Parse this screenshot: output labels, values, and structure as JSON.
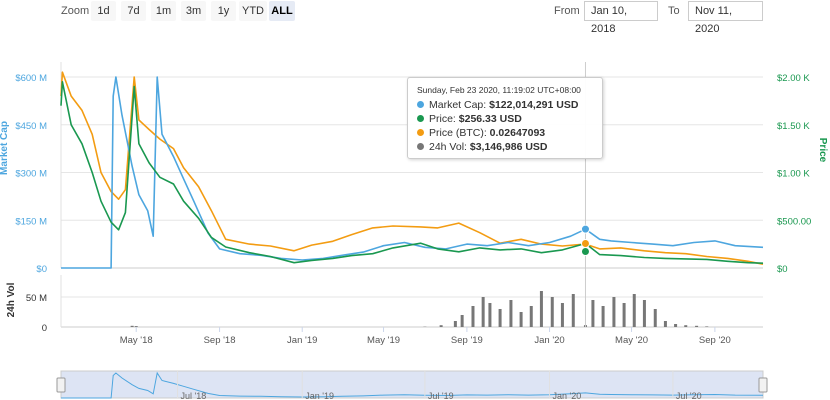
{
  "toolbar": {
    "zoom_label": "Zoom",
    "zoom_buttons": [
      "1d",
      "7d",
      "1m",
      "3m",
      "1y",
      "YTD",
      "ALL"
    ],
    "active_zoom": "ALL",
    "from_label": "From",
    "from_value": "Jan 10, 2018",
    "to_label": "To",
    "to_value": "Nov 11, 2020"
  },
  "tooltip": {
    "date": "Sunday, Feb 23 2020, 11:19:02 UTC+08:00",
    "rows": [
      {
        "label": "Market Cap:",
        "value": "$122,014,291 USD",
        "color": "#4da6df"
      },
      {
        "label": "Price:",
        "value": "$256.33 USD",
        "color": "#1a9850"
      },
      {
        "label": "Price (BTC):",
        "value": "0.02647093",
        "color": "#f39c12"
      },
      {
        "label": "24h Vol:",
        "value": "$3,146,986 USD",
        "color": "#777777"
      }
    ]
  },
  "colors": {
    "market_cap": "#4da6df",
    "price": "#1a9850",
    "price_btc": "#f39c12",
    "volume": "#777777",
    "navigator_fill": "#dde4f4"
  },
  "chart_data": {
    "type": "line",
    "x_ticks": [
      "May '18",
      "Sep '18",
      "Jan '19",
      "May '19",
      "Sep '19",
      "Jan '20",
      "May '20",
      "Sep '20"
    ],
    "navigator_ticks": [
      "Jul '18",
      "Jan '19",
      "Jul '19",
      "Jan '20",
      "Jul '20"
    ],
    "y_left": {
      "label": "Market Cap",
      "ticks": [
        "$0",
        "$150 M",
        "$300 M",
        "$450 M",
        "$600 M"
      ],
      "range": [
        0,
        600000000
      ]
    },
    "y_right": {
      "label": "Price",
      "ticks": [
        "$0",
        "$500.00",
        "$1.00 K",
        "$1.50 K",
        "$2.00 K"
      ],
      "range": [
        0,
        2000
      ]
    },
    "volume_axis": {
      "label": "24h Vol",
      "ticks": [
        "0",
        "50 M"
      ],
      "range": [
        0,
        75000000
      ]
    },
    "series": [
      {
        "name": "Market Cap",
        "axis": "left",
        "unit": "USD",
        "points": [
          [
            "2018-01-10",
            0
          ],
          [
            "2018-03-25",
            0
          ],
          [
            "2018-03-28",
            540000000
          ],
          [
            "2018-04-01",
            600000000
          ],
          [
            "2018-04-10",
            480000000
          ],
          [
            "2018-04-25",
            320000000
          ],
          [
            "2018-05-05",
            230000000
          ],
          [
            "2018-05-18",
            180000000
          ],
          [
            "2018-05-26",
            100000000
          ],
          [
            "2018-06-01",
            600000000
          ],
          [
            "2018-06-08",
            420000000
          ],
          [
            "2018-06-25",
            350000000
          ],
          [
            "2018-07-10",
            280000000
          ],
          [
            "2018-07-25",
            210000000
          ],
          [
            "2018-08-15",
            110000000
          ],
          [
            "2018-09-01",
            60000000
          ],
          [
            "2018-10-01",
            45000000
          ],
          [
            "2018-11-01",
            40000000
          ],
          [
            "2018-12-01",
            30000000
          ],
          [
            "2019-01-01",
            25000000
          ],
          [
            "2019-02-01",
            30000000
          ],
          [
            "2019-03-01",
            40000000
          ],
          [
            "2019-04-01",
            50000000
          ],
          [
            "2019-05-01",
            70000000
          ],
          [
            "2019-06-01",
            80000000
          ],
          [
            "2019-07-01",
            65000000
          ],
          [
            "2019-08-01",
            60000000
          ],
          [
            "2019-09-01",
            75000000
          ],
          [
            "2019-10-01",
            70000000
          ],
          [
            "2019-11-01",
            80000000
          ],
          [
            "2019-12-01",
            70000000
          ],
          [
            "2020-01-01",
            80000000
          ],
          [
            "2020-02-01",
            100000000
          ],
          [
            "2020-02-23",
            122014291
          ],
          [
            "2020-03-15",
            90000000
          ],
          [
            "2020-04-01",
            85000000
          ],
          [
            "2020-05-01",
            80000000
          ],
          [
            "2020-06-01",
            75000000
          ],
          [
            "2020-07-01",
            70000000
          ],
          [
            "2020-08-01",
            80000000
          ],
          [
            "2020-09-01",
            85000000
          ],
          [
            "2020-10-01",
            70000000
          ],
          [
            "2020-11-11",
            65000000
          ]
        ]
      },
      {
        "name": "Price",
        "axis": "right",
        "unit": "USD",
        "points": [
          [
            "2018-01-10",
            1700
          ],
          [
            "2018-01-12",
            1950
          ],
          [
            "2018-01-25",
            1500
          ],
          [
            "2018-02-10",
            1300
          ],
          [
            "2018-02-25",
            1000
          ],
          [
            "2018-03-10",
            700
          ],
          [
            "2018-03-25",
            480
          ],
          [
            "2018-04-05",
            400
          ],
          [
            "2018-04-15",
            580
          ],
          [
            "2018-04-28",
            1900
          ],
          [
            "2018-05-05",
            1300
          ],
          [
            "2018-05-20",
            1100
          ],
          [
            "2018-06-05",
            950
          ],
          [
            "2018-06-25",
            880
          ],
          [
            "2018-07-10",
            700
          ],
          [
            "2018-08-01",
            520
          ],
          [
            "2018-08-20",
            320
          ],
          [
            "2018-09-10",
            220
          ],
          [
            "2018-10-15",
            160
          ],
          [
            "2018-11-15",
            120
          ],
          [
            "2018-12-20",
            55
          ],
          [
            "2019-01-15",
            80
          ],
          [
            "2019-02-15",
            100
          ],
          [
            "2019-03-15",
            130
          ],
          [
            "2019-04-15",
            150
          ],
          [
            "2019-05-15",
            210
          ],
          [
            "2019-06-25",
            260
          ],
          [
            "2019-07-20",
            200
          ],
          [
            "2019-08-20",
            170
          ],
          [
            "2019-09-20",
            210
          ],
          [
            "2019-10-20",
            190
          ],
          [
            "2019-11-20",
            200
          ],
          [
            "2019-12-20",
            160
          ],
          [
            "2020-01-20",
            190
          ],
          [
            "2020-02-23",
            256.33
          ],
          [
            "2020-03-15",
            140
          ],
          [
            "2020-04-15",
            130
          ],
          [
            "2020-05-20",
            110
          ],
          [
            "2020-06-20",
            100
          ],
          [
            "2020-07-20",
            95
          ],
          [
            "2020-08-20",
            90
          ],
          [
            "2020-09-20",
            70
          ],
          [
            "2020-10-20",
            55
          ],
          [
            "2020-11-11",
            50
          ]
        ]
      },
      {
        "name": "Price (BTC)",
        "axis": "right",
        "points": [
          [
            "2018-01-10",
            1800
          ],
          [
            "2018-01-12",
            2050
          ],
          [
            "2018-01-25",
            1800
          ],
          [
            "2018-02-10",
            1650
          ],
          [
            "2018-02-25",
            1400
          ],
          [
            "2018-03-10",
            1000
          ],
          [
            "2018-03-25",
            800
          ],
          [
            "2018-04-05",
            720
          ],
          [
            "2018-04-15",
            820
          ],
          [
            "2018-04-28",
            2000
          ],
          [
            "2018-05-05",
            1550
          ],
          [
            "2018-05-20",
            1450
          ],
          [
            "2018-06-05",
            1350
          ],
          [
            "2018-06-25",
            1250
          ],
          [
            "2018-07-10",
            1050
          ],
          [
            "2018-08-01",
            850
          ],
          [
            "2018-08-20",
            600
          ],
          [
            "2018-09-10",
            300
          ],
          [
            "2018-10-15",
            250
          ],
          [
            "2018-11-15",
            230
          ],
          [
            "2018-12-20",
            180
          ],
          [
            "2019-01-15",
            240
          ],
          [
            "2019-02-15",
            280
          ],
          [
            "2019-03-15",
            350
          ],
          [
            "2019-04-15",
            420
          ],
          [
            "2019-05-15",
            440
          ],
          [
            "2019-06-25",
            430
          ],
          [
            "2019-07-20",
            420
          ],
          [
            "2019-08-20",
            470
          ],
          [
            "2019-09-20",
            370
          ],
          [
            "2019-10-20",
            260
          ],
          [
            "2019-11-20",
            300
          ],
          [
            "2019-12-20",
            250
          ],
          [
            "2020-01-20",
            230
          ],
          [
            "2020-02-23",
            250
          ],
          [
            "2020-03-15",
            200
          ],
          [
            "2020-04-15",
            210
          ],
          [
            "2020-05-20",
            180
          ],
          [
            "2020-06-20",
            160
          ],
          [
            "2020-07-20",
            150
          ],
          [
            "2020-08-20",
            120
          ],
          [
            "2020-09-20",
            100
          ],
          [
            "2020-10-20",
            70
          ],
          [
            "2020-11-11",
            40
          ]
        ]
      },
      {
        "name": "24h Vol",
        "axis": "volume",
        "unit": "USD",
        "points": [
          [
            "2018-04-25",
            2000000
          ],
          [
            "2018-05-01",
            1500000
          ],
          [
            "2019-07-01",
            500000
          ],
          [
            "2019-07-25",
            3000000
          ],
          [
            "2019-08-15",
            10000000
          ],
          [
            "2019-08-25",
            20000000
          ],
          [
            "2019-09-10",
            35000000
          ],
          [
            "2019-09-25",
            50000000
          ],
          [
            "2019-10-05",
            40000000
          ],
          [
            "2019-10-20",
            30000000
          ],
          [
            "2019-11-05",
            45000000
          ],
          [
            "2019-11-20",
            25000000
          ],
          [
            "2019-12-05",
            35000000
          ],
          [
            "2019-12-20",
            60000000
          ],
          [
            "2020-01-05",
            50000000
          ],
          [
            "2020-01-20",
            40000000
          ],
          [
            "2020-02-05",
            55000000
          ],
          [
            "2020-02-23",
            3146986
          ],
          [
            "2020-03-05",
            45000000
          ],
          [
            "2020-03-20",
            35000000
          ],
          [
            "2020-04-05",
            50000000
          ],
          [
            "2020-04-20",
            40000000
          ],
          [
            "2020-05-05",
            55000000
          ],
          [
            "2020-05-20",
            45000000
          ],
          [
            "2020-06-05",
            30000000
          ],
          [
            "2020-06-20",
            10000000
          ],
          [
            "2020-07-05",
            5000000
          ],
          [
            "2020-07-20",
            3000000
          ],
          [
            "2020-08-05",
            2000000
          ],
          [
            "2020-08-20",
            1000000
          ]
        ]
      }
    ]
  }
}
